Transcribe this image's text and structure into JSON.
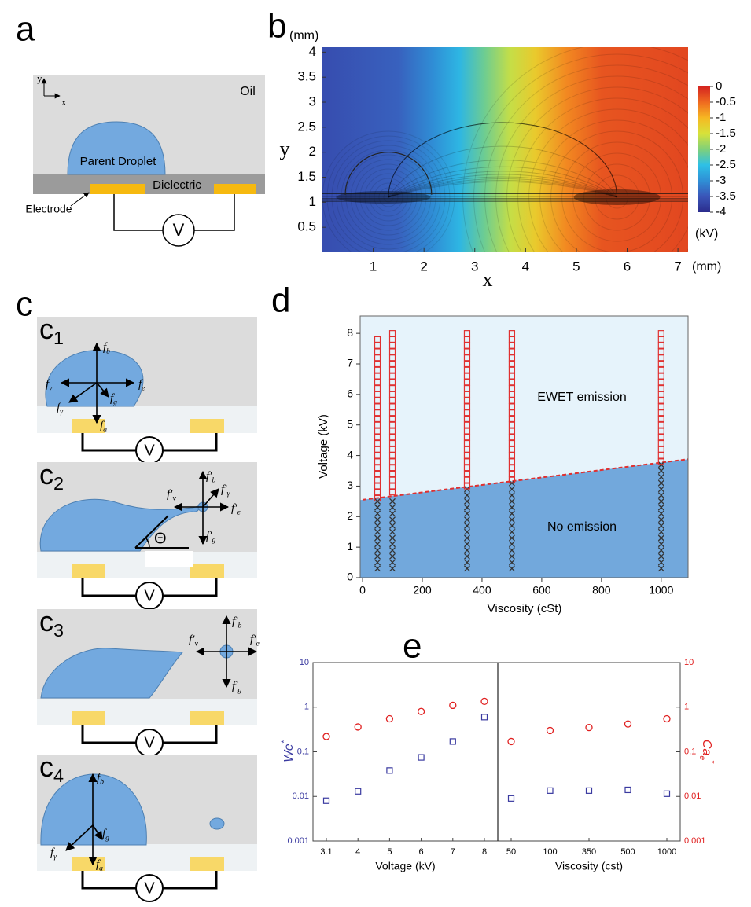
{
  "panel_labels": [
    "a",
    "b",
    "c",
    "d",
    "e"
  ],
  "panel_a": {
    "oil": "Oil",
    "droplet": "Parent Droplet",
    "dielectric": "Dielectric",
    "electrode": "Electrode",
    "voltage": "V",
    "axis_y": "y",
    "axis_x": "x"
  },
  "panel_c": {
    "subpanels": [
      {
        "label": {
          "main": "c",
          "sub": "1"
        },
        "voltage": "V",
        "forces": [
          {
            "main": "f",
            "sub": "b"
          },
          {
            "main": "f",
            "sub": "v"
          },
          {
            "main": "f",
            "sub": "e"
          },
          {
            "main": "f",
            "sub": "g"
          },
          {
            "main": "f",
            "sub": "γ"
          },
          {
            "main": "f",
            "sub": "a"
          }
        ]
      },
      {
        "label": {
          "main": "c",
          "sub": "2"
        },
        "voltage": "V",
        "angle": "Θ",
        "forces": [
          {
            "main": "f′",
            "sub": "b"
          },
          {
            "main": "f′",
            "sub": "γ"
          },
          {
            "main": "f′",
            "sub": "v"
          },
          {
            "main": "f′",
            "sub": "e"
          },
          {
            "main": "f′",
            "sub": "g"
          }
        ]
      },
      {
        "label": {
          "main": "c",
          "sub": "3"
        },
        "voltage": "V",
        "forces": [
          {
            "main": "f′",
            "sub": "b"
          },
          {
            "main": "f′",
            "sub": "v"
          },
          {
            "main": "f′",
            "sub": "e"
          },
          {
            "main": "f′",
            "sub": "g"
          }
        ]
      },
      {
        "label": {
          "main": "c",
          "sub": "4"
        },
        "voltage": "V",
        "forces": [
          {
            "main": "f",
            "sub": "b"
          },
          {
            "main": "f",
            "sub": "g"
          },
          {
            "main": "f",
            "sub": "γ"
          },
          {
            "main": "f",
            "sub": "a"
          }
        ]
      }
    ]
  },
  "chart_data": [
    {
      "type": "heatmap",
      "xlabel": "x",
      "ylabel": "y",
      "x_unit": "(mm)",
      "y_unit": "(mm)",
      "xlim": [
        0,
        7.2
      ],
      "ylim": [
        0,
        4.1
      ],
      "xticks": [
        1,
        2,
        3,
        4,
        5,
        6,
        7
      ],
      "yticks": [
        0.5,
        1,
        1.5,
        2,
        2.5,
        3,
        3.5,
        4
      ],
      "clim": [
        -4,
        0
      ],
      "colorbar_ticks": [
        0,
        -0.5,
        -1,
        -1.5,
        -2,
        -2.5,
        -3,
        -3.5,
        -4
      ],
      "colorbar_unit": "(kV)",
      "colormap": [
        "#2b2c8c",
        "#3a55b8",
        "#2f8fd6",
        "#2ec0e6",
        "#7fd07a",
        "#d7e23a",
        "#f6b822",
        "#ef6a20",
        "#d42420"
      ],
      "field_profile": {
        "x": [
          0,
          1.5,
          2.2,
          2.7,
          3.2,
          3.7,
          4.2,
          4.8,
          5.5,
          7.2
        ],
        "values": [
          -3.6,
          -3.4,
          -3.0,
          -2.6,
          -2.1,
          -1.6,
          -1.2,
          -0.7,
          -0.35,
          -0.25
        ]
      }
    },
    {
      "type": "scatter",
      "xlabel": "Viscosity (cSt)",
      "ylabel": "Voltage (kV)",
      "xlim": [
        -8,
        1090
      ],
      "ylim": [
        0,
        8.57
      ],
      "xticks": [
        0,
        200,
        400,
        600,
        800,
        1000
      ],
      "yticks": [
        0,
        1,
        2,
        3,
        4,
        5,
        6,
        7,
        8
      ],
      "annotations": [
        "EWET emission",
        "No emission"
      ],
      "emission_color": "#e03030",
      "none_color": "#333333",
      "region_color": "#72a8dc",
      "background_color": "#e6f3fb",
      "boundary": {
        "x": [
          0,
          1090
        ],
        "values": [
          2.55,
          3.88
        ]
      },
      "columns": [
        {
          "x": 50,
          "emission": [
            2.6,
            2.8,
            3,
            3.2,
            3.4,
            3.6,
            3.8,
            4,
            4.2,
            4.4,
            4.6,
            4.8,
            5,
            5.2,
            5.4,
            5.6,
            5.8,
            6,
            6.2,
            6.4,
            6.6,
            6.8,
            7,
            7.2,
            7.4,
            7.6,
            7.8
          ],
          "none": [
            0.3,
            0.5,
            0.7,
            0.9,
            1.1,
            1.3,
            1.5,
            1.7,
            1.9,
            2.1,
            2.3,
            2.5
          ]
        },
        {
          "x": 100,
          "emission": [
            2.8,
            3,
            3.2,
            3.4,
            3.6,
            3.8,
            4,
            4.2,
            4.4,
            4.6,
            4.8,
            5,
            5.2,
            5.4,
            5.6,
            5.8,
            6,
            6.2,
            6.4,
            6.6,
            6.8,
            7,
            7.2,
            7.4,
            7.6,
            7.8,
            8
          ],
          "none": [
            0.3,
            0.5,
            0.7,
            0.9,
            1.1,
            1.3,
            1.5,
            1.7,
            1.9,
            2.1,
            2.3,
            2.5
          ]
        },
        {
          "x": 350,
          "emission": [
            3,
            3.2,
            3.4,
            3.6,
            3.8,
            4,
            4.2,
            4.4,
            4.6,
            4.8,
            5,
            5.2,
            5.4,
            5.6,
            5.8,
            6,
            6.2,
            6.4,
            6.6,
            6.8,
            7,
            7.2,
            7.4,
            7.6,
            7.8,
            8
          ],
          "none": [
            0.3,
            0.5,
            0.7,
            0.9,
            1.1,
            1.3,
            1.5,
            1.7,
            1.9,
            2.1,
            2.3,
            2.5,
            2.7,
            2.9
          ]
        },
        {
          "x": 500,
          "emission": [
            3.2,
            3.4,
            3.6,
            3.8,
            4,
            4.2,
            4.4,
            4.6,
            4.8,
            5,
            5.2,
            5.4,
            5.6,
            5.8,
            6,
            6.2,
            6.4,
            6.6,
            6.8,
            7,
            7.2,
            7.4,
            7.6,
            7.8,
            8
          ],
          "none": [
            0.3,
            0.5,
            0.7,
            0.9,
            1.1,
            1.3,
            1.5,
            1.7,
            1.9,
            2.1,
            2.3,
            2.5,
            2.7,
            2.9,
            3.1
          ]
        },
        {
          "x": 1000,
          "emission": [
            3.8,
            4,
            4.2,
            4.4,
            4.6,
            4.8,
            5,
            5.2,
            5.4,
            5.6,
            5.8,
            6,
            6.2,
            6.4,
            6.6,
            6.8,
            7,
            7.2,
            7.4,
            7.6,
            7.8,
            8
          ],
          "none": [
            0.3,
            0.5,
            0.7,
            0.9,
            1.1,
            1.3,
            1.5,
            1.7,
            1.9,
            2.1,
            2.3,
            2.5,
            2.7,
            2.9,
            3.1,
            3.3,
            3.5,
            3.7
          ]
        }
      ]
    },
    {
      "type": "dot",
      "ylog": true,
      "ylim": [
        0.001,
        10
      ],
      "yticks": [
        0.001,
        0.01,
        0.1,
        1,
        10
      ],
      "y2lim": [
        0.001,
        10
      ],
      "y2ticks": [
        0.001,
        0.01,
        0.1,
        1,
        10
      ],
      "ylabel": {
        "main": "We",
        "sup": "*"
      },
      "y2label": {
        "main": "Ca",
        "sub": "e",
        "sup": "*"
      },
      "ycolor": "#3a3aa0",
      "y2color": "#e02020",
      "groups": [
        {
          "xlabel": "Voltage (kV)",
          "categories": [
            "3.1",
            "4",
            "5",
            "6",
            "7",
            "8"
          ],
          "series": [
            {
              "color": "#3a3aa0",
              "marker": "square",
              "values": [
                0.008,
                0.013,
                0.038,
                0.075,
                0.17,
                0.6
              ]
            },
            {
              "color": "#e02020",
              "marker": "circle",
              "axis": "y2",
              "values": [
                0.22,
                0.36,
                0.55,
                0.8,
                1.1,
                1.35
              ]
            }
          ]
        },
        {
          "xlabel": "Viscosity (cst)",
          "categories": [
            "50",
            "100",
            "350",
            "500",
            "1000"
          ],
          "series": [
            {
              "color": "#3a3aa0",
              "marker": "square",
              "values": [
                0.009,
                0.0135,
                0.0135,
                0.014,
                0.0115
              ]
            },
            {
              "color": "#e02020",
              "marker": "circle",
              "axis": "y2",
              "values": [
                0.17,
                0.3,
                0.35,
                0.42,
                0.55
              ]
            }
          ]
        }
      ]
    }
  ]
}
